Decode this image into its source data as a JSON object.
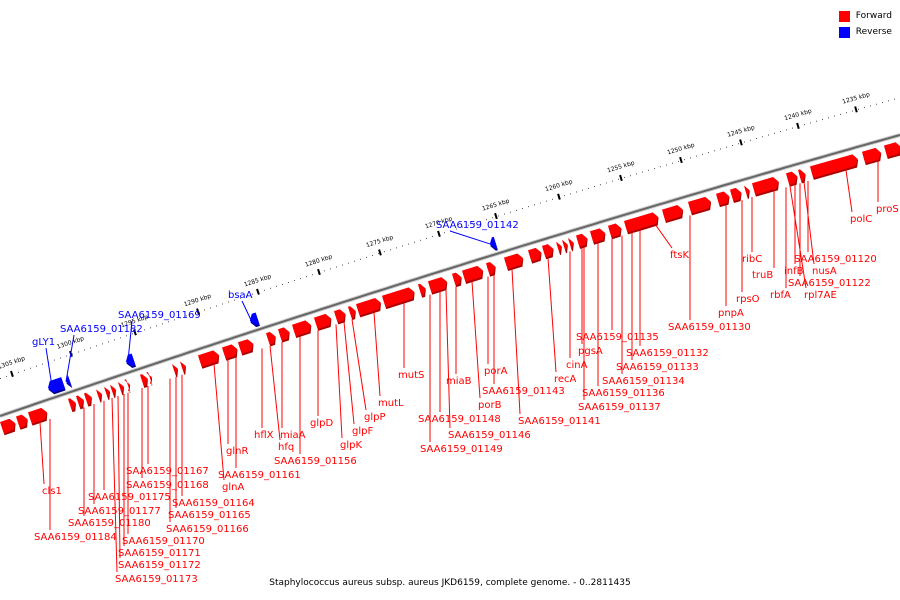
{
  "legend": {
    "forward_label": "Forward",
    "reverse_label": "Reverse",
    "forward_color": "#ff0000",
    "reverse_color": "#0000ff"
  },
  "caption": "Staphylococcus aureus subsp. aureus JKD6159, complete genome. - 0..2811435",
  "scale": {
    "tick_labels": [
      "1305 kbp",
      "1300 kbp",
      "1295 kbp",
      "1290 kbp",
      "1285 kbp",
      "1280 kbp",
      "1275 kbp",
      "1270 kbp",
      "1265 kbp",
      "1260 kbp",
      "1255 kbp",
      "1250 kbp",
      "1245 kbp",
      "1240 kbp",
      "1235 kbp"
    ]
  },
  "genes": {
    "reverse": [
      "gLY1",
      "SAA6159_01182",
      "SAA6159_01169",
      "bsaA",
      "SAA6159_01142"
    ],
    "forward": [
      "proS",
      "polC",
      "SAA6159_01120",
      "nusA",
      "SAA6159_01122",
      "infB",
      "rpl7AE",
      "truB",
      "rbfA",
      "ribC",
      "rpsO",
      "pnpA",
      "SAA6159_01130",
      "ftsK",
      "SAA6159_01132",
      "SAA6159_01133",
      "SAA6159_01134",
      "SAA6159_01135",
      "SAA6159_01136",
      "SAA6159_01137",
      "pgsA",
      "cinA",
      "recA",
      "SAA6159_01141",
      "SAA6159_01143",
      "porA",
      "porB",
      "miaB",
      "SAA6159_01148",
      "SAA6159_01146",
      "SAA6159_01149",
      "mutS",
      "mutL",
      "glpP",
      "glpF",
      "glpK",
      "glpD",
      "SAA6159_01156",
      "miaA",
      "hfq",
      "hflX",
      "SAA6159_01161",
      "glnR",
      "glnA",
      "SAA6159_01164",
      "SAA6159_01165",
      "SAA6159_01166",
      "SAA6159_01167",
      "SAA6159_01168",
      "SAA6159_01170",
      "SAA6159_01171",
      "SAA6159_01172",
      "SAA6159_01173",
      "SAA6159_01175",
      "SAA6159_01177",
      "SAA6159_01180",
      "SAA6159_01184",
      "cls1"
    ]
  }
}
